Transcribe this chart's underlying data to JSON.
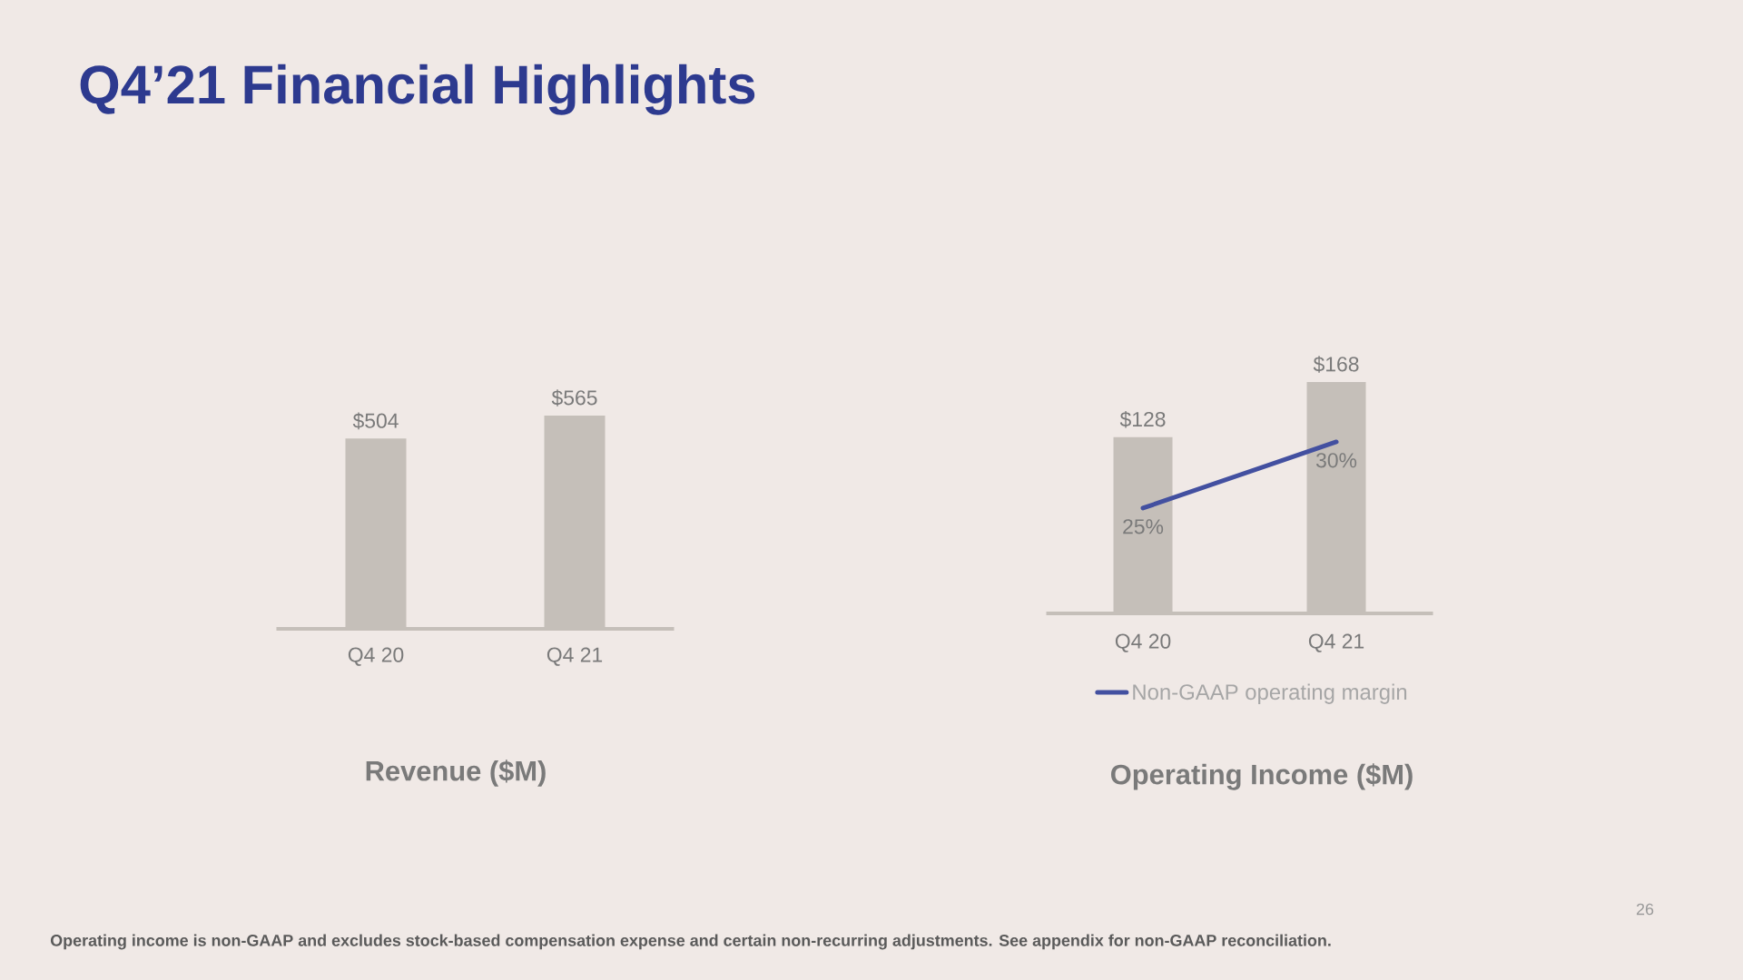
{
  "chart_data": [
    {
      "type": "bar",
      "title": "Revenue ($M)",
      "categories": [
        "Q4 20",
        "Q4 21"
      ],
      "values": [
        504,
        565
      ],
      "value_labels": [
        "$504",
        "$565"
      ],
      "color": "#c5bfb9",
      "tick_labels": "x",
      "annotations": [
        "Q4’21 Financial Highlights"
      ]
    },
    {
      "type": "bar",
      "title": "Operating Income ($M)",
      "categories": [
        "Q4 20",
        "Q4 21"
      ],
      "series": [
        {
          "color": "#c5bfb9",
          "values": [
            128,
            168
          ],
          "value_labels": [
            "$128",
            "$168"
          ]
        },
        {
          "type": "line",
          "name": "Non-GAAP operating margin",
          "color": "#4350a0",
          "values": [
            25,
            30
          ],
          "value_labels": [
            "25%",
            "30%"
          ],
          "axis": "y2"
        }
      ],
      "tick_labels": "x",
      "legend": "bottom",
      "annotations": [
        "Operating income is non-GAAP and excludes stock-based compensation expense and certain non-recurring adjustments. See appendix for non-GAAP reconciliation.",
        "26"
      ]
    }
  ]
}
